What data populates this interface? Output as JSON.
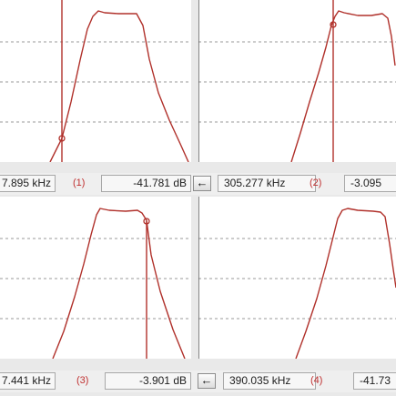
{
  "panels": [
    {
      "freq": "7.895 kHz",
      "index": "(1)",
      "level": "-41.781 dB"
    },
    {
      "nav_icon": "arrow-left-icon",
      "freq": "305.277 kHz",
      "index": "(2)",
      "level": "-3.095"
    },
    {
      "freq": "7.441 kHz",
      "index": "(3)",
      "level": "-3.901 dB"
    },
    {
      "nav_icon": "arrow-left-icon",
      "freq": "390.035 kHz",
      "index": "(4)",
      "level": "-41.73"
    }
  ],
  "icons": {
    "nav_glyph": "←"
  },
  "colors": {
    "trace": "#b0302a",
    "grid": "#9a9a9a",
    "panel_bg": "#ffffff"
  }
}
